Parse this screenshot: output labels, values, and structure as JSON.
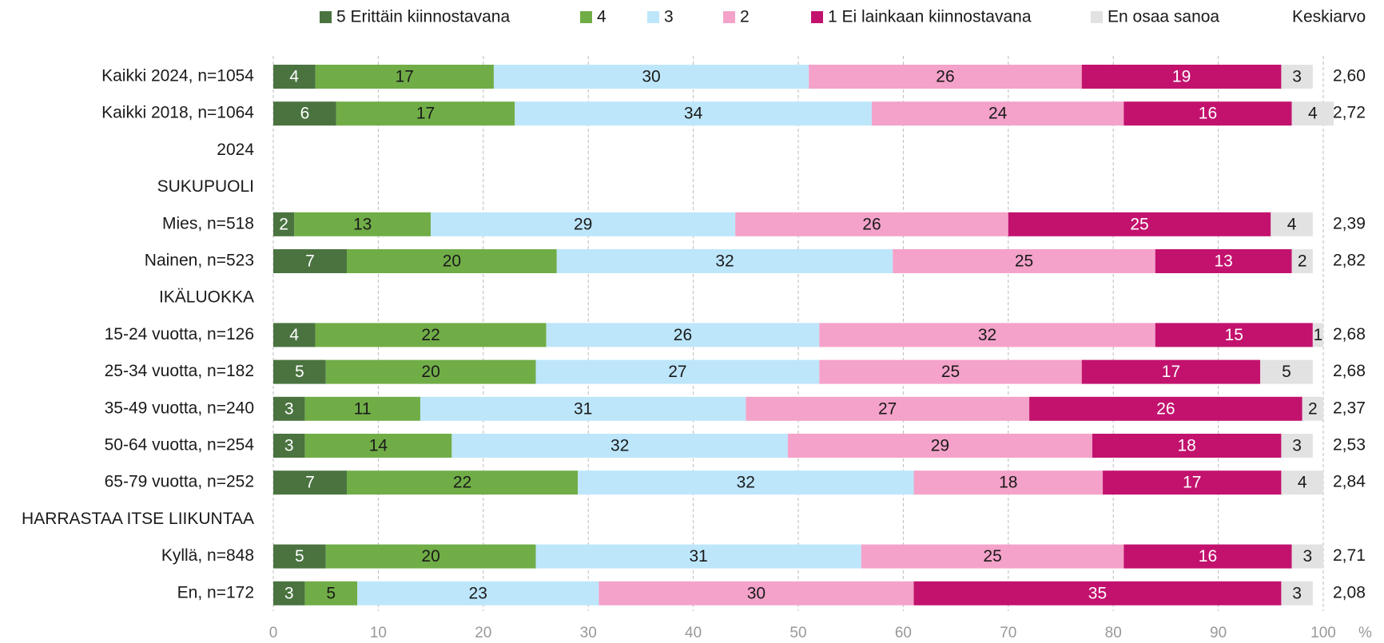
{
  "chart_data": {
    "type": "stacked-bar-horizontal",
    "categories": [
      "Kaikki 2024, n=1054",
      "Kaikki 2018, n=1064",
      "2024",
      "SUKUPUOLI",
      "Mies, n=518",
      "Nainen, n=523",
      "IKÄLUOKKA",
      "15-24 vuotta, n=126",
      "25-34 vuotta, n=182",
      "35-49 vuotta, n=240",
      "50-64 vuotta, n=254",
      "65-79 vuotta, n=252",
      "HARRASTAA ITSE LIIKUNTAA",
      "Kyllä, n=848",
      "En, n=172"
    ],
    "series": [
      {
        "name": "5 Erittäin kiinnostavana",
        "color": "#4a7340",
        "label_color": "#ffffff",
        "values": [
          4,
          6,
          null,
          null,
          2,
          7,
          null,
          4,
          5,
          3,
          3,
          7,
          null,
          5,
          3
        ]
      },
      {
        "name": "4",
        "color": "#70ad47",
        "label_color": "#1a1a1a",
        "values": [
          17,
          17,
          null,
          null,
          13,
          20,
          null,
          22,
          20,
          11,
          14,
          22,
          null,
          20,
          5
        ]
      },
      {
        "name": "3",
        "color": "#bde6fb",
        "label_color": "#1a1a1a",
        "values": [
          30,
          34,
          null,
          null,
          29,
          32,
          null,
          26,
          27,
          31,
          32,
          32,
          null,
          31,
          23
        ]
      },
      {
        "name": "2",
        "color": "#f4a2c9",
        "label_color": "#1a1a1a",
        "values": [
          26,
          24,
          null,
          null,
          26,
          25,
          null,
          32,
          25,
          27,
          29,
          18,
          null,
          25,
          30
        ]
      },
      {
        "name": "1 Ei lainkaan kiinnostavana",
        "color": "#c2126e",
        "label_color": "#ffffff",
        "values": [
          19,
          16,
          null,
          null,
          25,
          13,
          null,
          15,
          17,
          26,
          18,
          17,
          null,
          16,
          35
        ]
      },
      {
        "name": "En osaa sanoa",
        "color": "#e2e2e2",
        "label_color": "#1a1a1a",
        "values": [
          3,
          4,
          null,
          null,
          4,
          2,
          null,
          1,
          5,
          2,
          3,
          4,
          null,
          3,
          3
        ]
      }
    ],
    "mean_title": "Keskiarvo",
    "means": [
      2.6,
      2.72,
      null,
      null,
      2.39,
      2.82,
      null,
      2.68,
      2.68,
      2.37,
      2.53,
      2.84,
      null,
      2.71,
      2.08
    ],
    "mean_labels": [
      "2,60",
      "2,72",
      null,
      null,
      "2,39",
      "2,82",
      null,
      "2,68",
      "2,68",
      "2,37",
      "2,53",
      "2,84",
      null,
      "2,71",
      "2,08"
    ],
    "x_label": "%",
    "xlim": [
      0,
      100
    ],
    "xticks": [
      0,
      10,
      20,
      30,
      40,
      50,
      60,
      70,
      80,
      90,
      100
    ],
    "grid": true
  }
}
